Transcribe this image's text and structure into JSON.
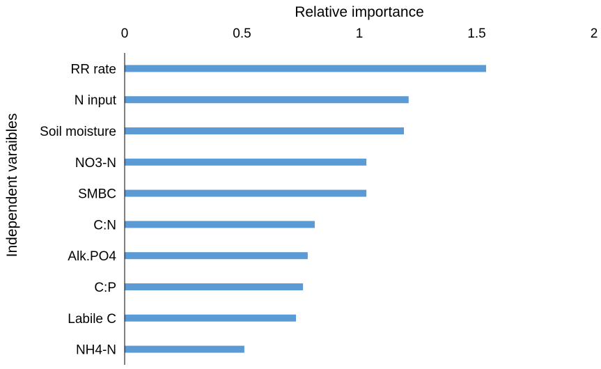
{
  "chart_data": {
    "type": "bar",
    "orientation": "horizontal",
    "xlabel": "Relative importance",
    "ylabel": "Independent varaibles",
    "xlim": [
      0,
      2
    ],
    "xticks": [
      0,
      0.5,
      1,
      1.5,
      2
    ],
    "x_axis_position": "top",
    "grid": false,
    "categories": [
      "RR rate",
      "N input",
      "Soil moisture",
      "NO3-N",
      "SMBC",
      "C:N",
      "Alk.PO4",
      "C:P",
      "Labile C",
      "NH4-N"
    ],
    "values": [
      1.54,
      1.21,
      1.19,
      1.03,
      1.03,
      0.81,
      0.78,
      0.76,
      0.73,
      0.51
    ],
    "bar_color": "#5B9BD5"
  }
}
